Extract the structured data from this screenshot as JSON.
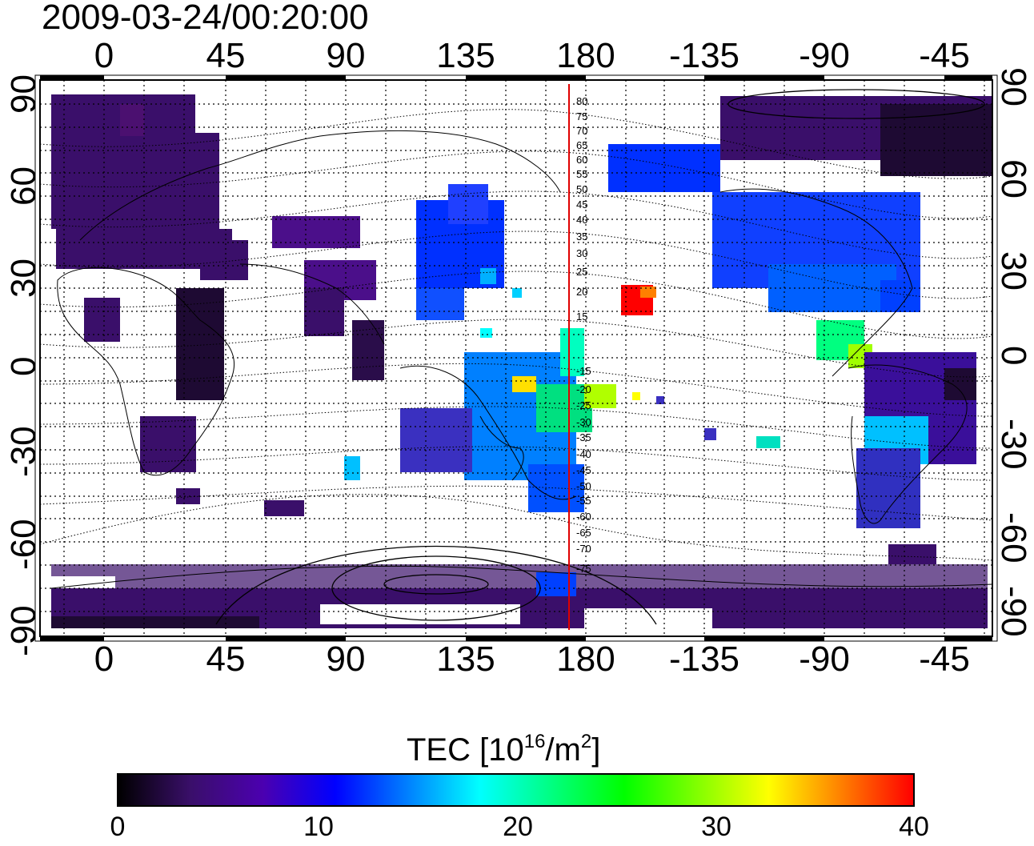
{
  "timestamp": "2009-03-24/00:20:00",
  "map": {
    "projection": "geomagnetic (cylindrical)",
    "top_lon_ticks": [
      "0",
      "45",
      "90",
      "135",
      "180",
      "-135",
      "-90",
      "-45"
    ],
    "bottom_lon_ticks": [
      "0",
      "45",
      "90",
      "135",
      "180",
      "-135",
      "-90",
      "-45"
    ],
    "left_lat_ticks": [
      "90",
      "60",
      "30",
      "0",
      "-30",
      "-60",
      "-90"
    ],
    "right_lat_ticks": [
      "90",
      "60",
      "30",
      "0",
      "-30",
      "-60",
      "-90"
    ],
    "meridian_latitude_labels": [
      "80",
      "75",
      "70",
      "65",
      "60",
      "55",
      "50",
      "45",
      "40",
      "35",
      "30",
      "25",
      "20",
      "15",
      "-15",
      "-20",
      "-25",
      "-30",
      "-35",
      "-40",
      "-45",
      "-50",
      "-55",
      "-60",
      "-65",
      "-70",
      "-75"
    ],
    "colors": {
      "land_outline": "#000000",
      "grid": "#000000",
      "meridian_line": "#e00000",
      "tec_low": "#3a0f6a",
      "tec_high": "#ff0000"
    }
  },
  "colorbar": {
    "title_prefix": "TEC  [10",
    "title_exp": "16",
    "title_mid": "/m",
    "title_exp2": "2",
    "title_suffix": "]",
    "ticks": [
      "0",
      "10",
      "20",
      "30",
      "40"
    ],
    "range": [
      0,
      40
    ],
    "colormap": [
      "#000000",
      "#3a0f6a",
      "#4b00b0",
      "#0000ff",
      "#0080ff",
      "#00ffff",
      "#00ff80",
      "#00ff00",
      "#80ff00",
      "#ffff00",
      "#ff8000",
      "#ff0000"
    ]
  }
}
